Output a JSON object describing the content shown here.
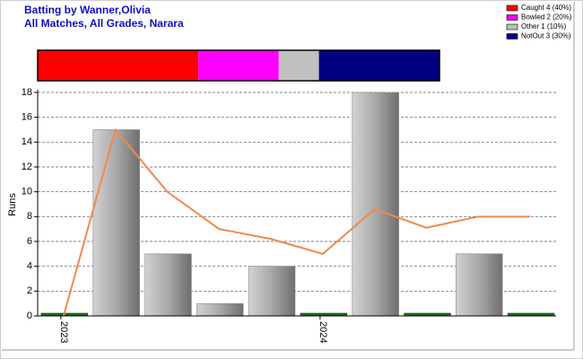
{
  "chart_data": [
    {
      "type": "stacked-bar",
      "series": [
        {
          "name": "Caught 4 (40%)",
          "color": "#ff0000",
          "values": [
            40
          ]
        },
        {
          "name": "Bowled 2 (20%)",
          "color": "#ff00ff",
          "values": [
            20
          ]
        },
        {
          "name": "Other 1 (10%)",
          "color": "#c0c0c0",
          "values": [
            10
          ]
        },
        {
          "name": "NotOut 3 (30%)",
          "color": "#000080",
          "values": [
            30
          ]
        }
      ],
      "xlim": [
        0,
        100
      ]
    },
    {
      "type": "bar-line",
      "title": "Batting by Wanner,Olivia",
      "subtitle": "All Matches, All Grades, Narara",
      "y_label": "Runs",
      "categories": [
        "2023",
        null,
        null,
        null,
        null,
        "2024",
        null,
        null,
        null,
        null
      ],
      "series": [
        {
          "type": "bar",
          "values": [
            0,
            15,
            5,
            1,
            4,
            0,
            18,
            0,
            5,
            0
          ],
          "colors": [
            "#1e6e1e",
            "gray",
            "gray",
            "gray",
            "gray",
            "#1e6e1e",
            "gray",
            "#1e6e1e",
            "gray",
            "#1e6e1e"
          ]
        },
        {
          "type": "line",
          "color": "#f08a4b",
          "values": [
            0,
            15,
            10,
            7,
            6.2,
            5,
            8.6,
            7.1,
            8,
            8
          ]
        }
      ],
      "ylim": [
        0,
        18
      ],
      "yticks": [
        0,
        2,
        4,
        6,
        8,
        10,
        12,
        14,
        16,
        18
      ],
      "grid": true
    }
  ]
}
